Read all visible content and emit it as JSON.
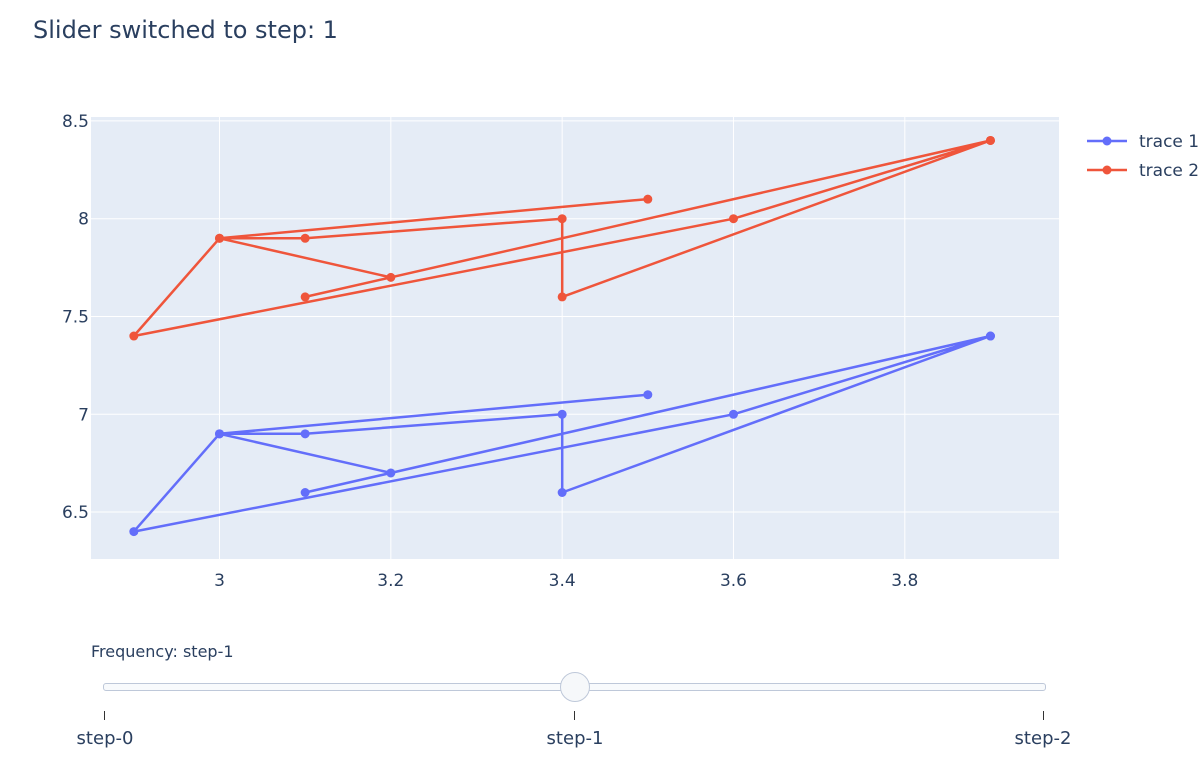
{
  "title": "Slider switched to step: 1",
  "colors": {
    "plot_bg": "#e5ecf6",
    "grid": "#ffffff",
    "text": "#2a3f5f",
    "trace1": "#636efa",
    "trace2": "#ef553b"
  },
  "chart_data": {
    "type": "line",
    "mode": "lines+markers",
    "title": "Slider switched to step: 1",
    "xlabel": "",
    "ylabel": "",
    "xlim": [
      2.85,
      3.98
    ],
    "ylim": [
      6.26,
      8.52
    ],
    "xticks": [
      3,
      3.2,
      3.4,
      3.6,
      3.8
    ],
    "xtick_labels": [
      "3",
      "3.2",
      "3.4",
      "3.6",
      "3.8"
    ],
    "yticks": [
      6.5,
      7,
      7.5,
      8,
      8.5
    ],
    "ytick_labels": [
      "6.5",
      "7",
      "7.5",
      "8",
      "8.5"
    ],
    "grid": true,
    "legend_position": "top-right",
    "series": [
      {
        "name": "trace 1",
        "color": "#636efa",
        "x": [
          3.5,
          3.0,
          3.2,
          3.1,
          3.9,
          3.6,
          2.9,
          3.0,
          3.1,
          3.4,
          3.4,
          3.9
        ],
        "y": [
          7.1,
          6.9,
          6.7,
          6.6,
          7.4,
          7.0,
          6.4,
          6.9,
          6.9,
          7.0,
          6.6,
          7.4
        ]
      },
      {
        "name": "trace 2",
        "color": "#ef553b",
        "x": [
          3.5,
          3.0,
          3.2,
          3.1,
          3.9,
          3.6,
          2.9,
          3.0,
          3.1,
          3.4,
          3.4,
          3.9
        ],
        "y": [
          8.1,
          7.9,
          7.7,
          7.6,
          8.4,
          8.0,
          7.4,
          7.9,
          7.9,
          8.0,
          7.6,
          8.4
        ]
      }
    ]
  },
  "slider": {
    "prefix": "Frequency: ",
    "current_value": "step-1",
    "active_index": 1,
    "steps": [
      "step-0",
      "step-1",
      "step-2"
    ]
  }
}
